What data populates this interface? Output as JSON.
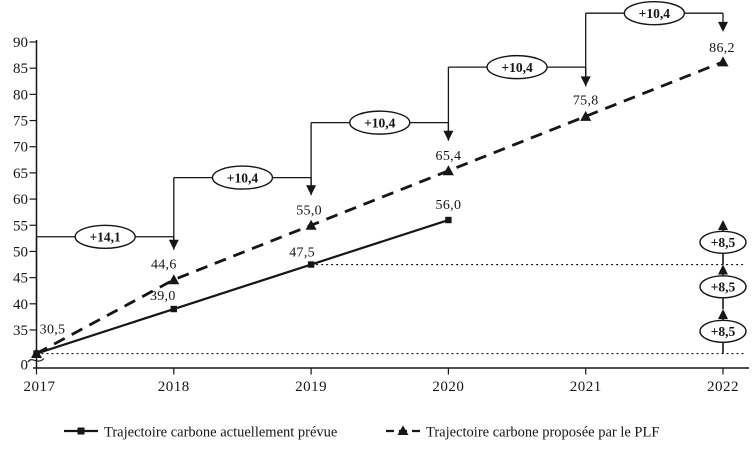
{
  "colors": {
    "ink": "#161616",
    "background": "#ffffff"
  },
  "chart_data": {
    "type": "line",
    "x_tick_labels": [
      "2017",
      "2018",
      "2019",
      "2020",
      "2021",
      "2022"
    ],
    "y_tick_labels": [
      "90",
      "85",
      "80",
      "75",
      "70",
      "65",
      "60",
      "55",
      "50",
      "45",
      "40",
      "35"
    ],
    "y_tick_values": [
      90,
      85,
      80,
      75,
      70,
      65,
      60,
      55,
      50,
      45,
      40,
      35
    ],
    "y_origin_label": "0",
    "y_axis_break": true,
    "grid": false,
    "series": [
      {
        "name": "Trajectoire carbone actuellement prévue",
        "line_style": "solid",
        "marker": "square",
        "x": [
          "2017",
          "2018",
          "2019",
          "2020"
        ],
        "values": [
          30.5,
          39.0,
          47.5,
          56.0
        ],
        "point_labels": [
          {
            "text": "30,5",
            "dx": 16,
            "dy": -20
          },
          {
            "text": "39,0",
            "dx": -11,
            "dy": -9
          },
          {
            "text": "47,5",
            "dx": -9,
            "dy": -8
          },
          {
            "text": "56,0",
            "dx": 0,
            "dy": -11
          }
        ]
      },
      {
        "name": "Trajectoire carbone proposée par le PLF",
        "line_style": "dashed",
        "marker": "triangle",
        "x": [
          "2017",
          "2018",
          "2019",
          "2020",
          "2021",
          "2022"
        ],
        "values": [
          30.5,
          44.6,
          55.0,
          65.4,
          75.8,
          86.2
        ],
        "point_labels": [
          null,
          {
            "text": "44,6",
            "dx": -10,
            "dy": -11
          },
          {
            "text": "55,0",
            "dx": -2,
            "dy": -11
          },
          {
            "text": "65,4",
            "dx": 0,
            "dy": -11
          },
          {
            "text": "75,8",
            "dx": 0,
            "dy": -12
          },
          {
            "text": "86,2",
            "dx": -1,
            "dy": -10
          }
        ]
      }
    ],
    "step_annotations": [
      {
        "from_index": 0,
        "to_index": 1,
        "label": "+14,1",
        "level_value": 52.8
      },
      {
        "from_index": 1,
        "to_index": 2,
        "label": "+10,4",
        "level_value": 64.1
      },
      {
        "from_index": 2,
        "to_index": 3,
        "label": "+10,4",
        "level_value": 74.6
      },
      {
        "from_index": 3,
        "to_index": 4,
        "label": "+10,4",
        "level_value": 85.2
      },
      {
        "from_index": 4,
        "to_index": 5,
        "label": "+10,4",
        "level_value": 95.5
      }
    ],
    "increment_chain": {
      "at_index": 5,
      "stop_values": [
        30.5,
        39.0,
        47.5,
        56.0
      ],
      "labels": [
        "+8,5",
        "+8,5",
        "+8,5"
      ]
    },
    "reference_dotted_lines": [
      {
        "value": 30.5,
        "from_index": 0
      },
      {
        "value": 47.5,
        "from_index": 2
      }
    ],
    "legend": [
      {
        "label": "Trajectoire carbone actuellement prévue",
        "line_style": "solid",
        "marker": "square"
      },
      {
        "label": "Trajectoire carbone proposée par le PLF",
        "line_style": "dashed",
        "marker": "triangle"
      }
    ]
  }
}
